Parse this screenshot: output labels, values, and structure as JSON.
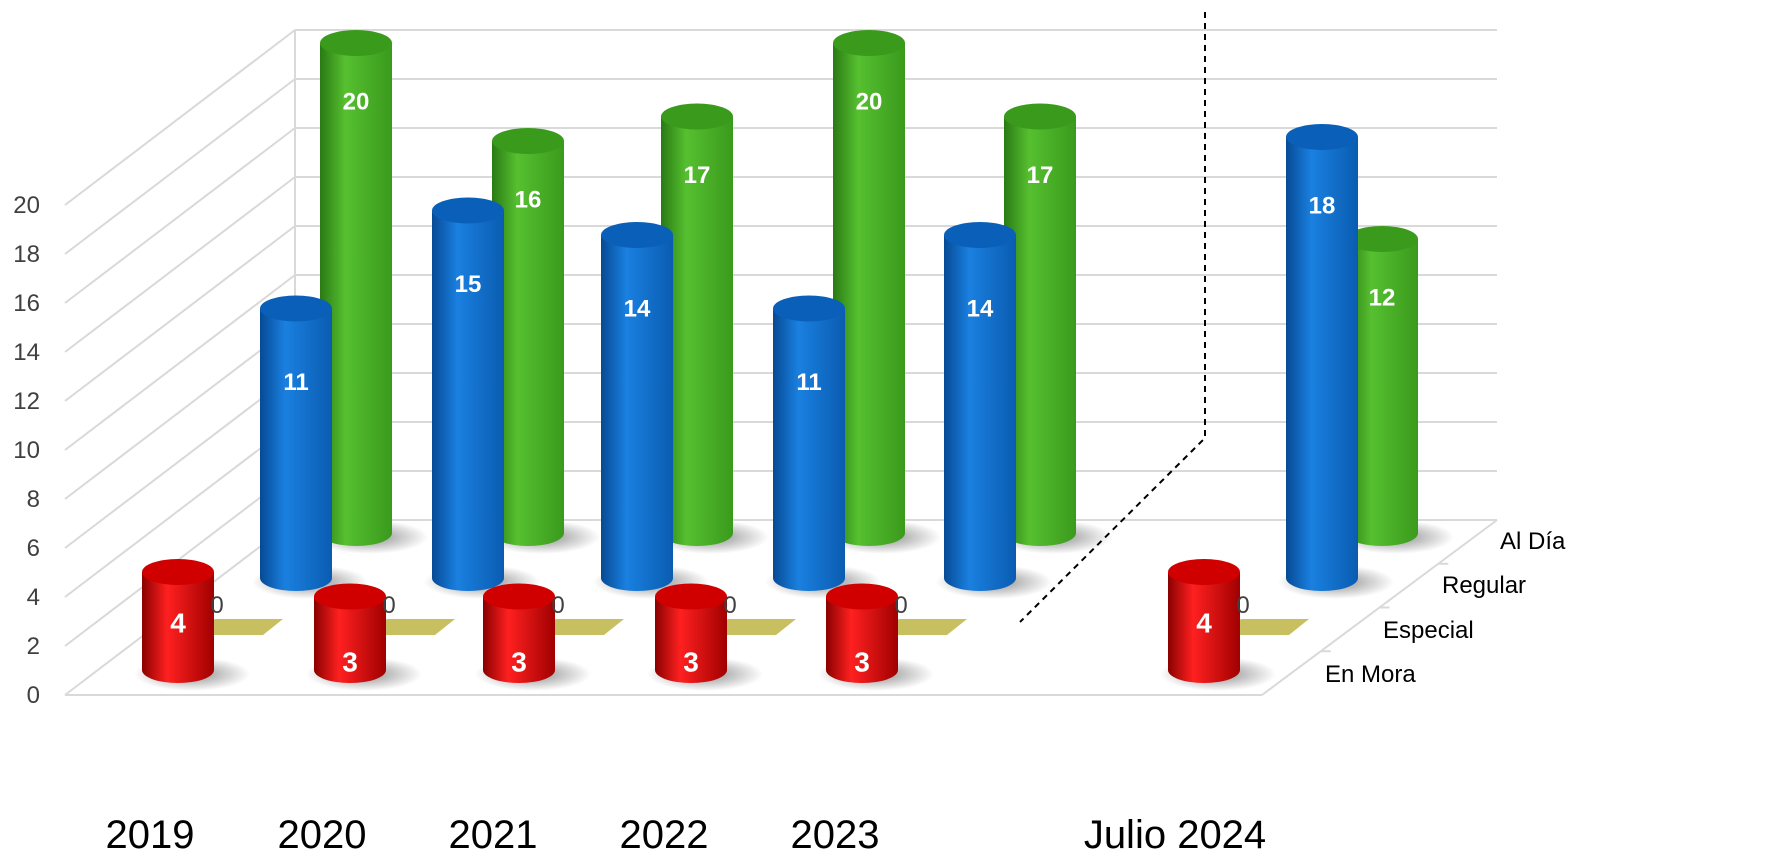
{
  "chart_data": {
    "type": "bar",
    "style": "3d-cylinder",
    "categories": [
      "2019",
      "2020",
      "2021",
      "2022",
      "2023",
      "Julio 2024"
    ],
    "series": [
      {
        "name": "En Mora",
        "color": "#e00000",
        "values": [
          4,
          3,
          3,
          3,
          3,
          4
        ]
      },
      {
        "name": "Especial",
        "color": "#c8c060",
        "values": [
          0,
          0,
          0,
          0,
          0,
          0
        ]
      },
      {
        "name": "Regular",
        "color": "#0a6fd0",
        "values": [
          11,
          15,
          14,
          11,
          14,
          18
        ]
      },
      {
        "name": "Al Día",
        "color": "#3faa1e",
        "values": [
          20,
          16,
          17,
          20,
          17,
          12
        ]
      }
    ],
    "y_ticks": [
      "0",
      "2",
      "4",
      "6",
      "8",
      "10",
      "12",
      "14",
      "16",
      "18",
      "20"
    ],
    "ylim": [
      0,
      20
    ],
    "grid": true,
    "separator": "dashed line between 2023 and Julio 2024"
  }
}
